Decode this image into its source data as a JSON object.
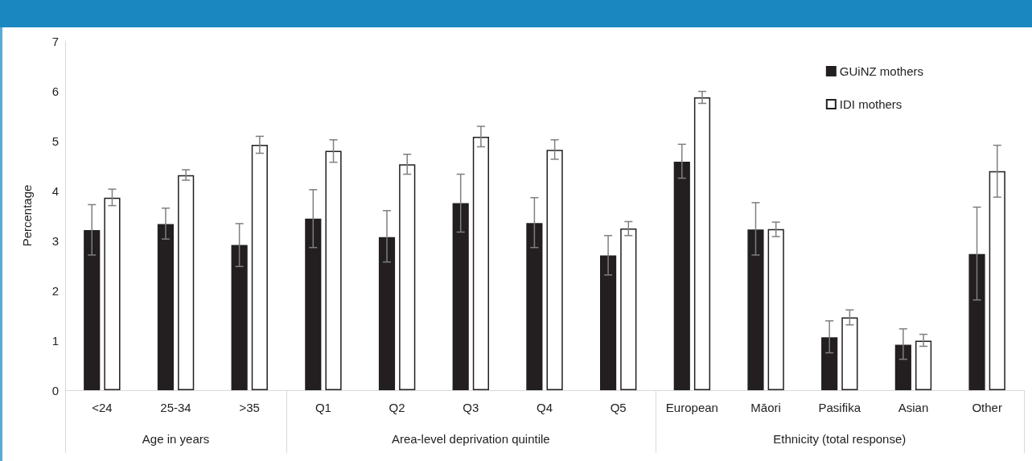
{
  "chart_data": {
    "type": "bar",
    "ylabel": "Percentage",
    "categories": [
      "<24",
      "25-34",
      ">35",
      "Q1",
      "Q2",
      "Q3",
      "Q4",
      "Q5",
      "European",
      "Māori",
      "Pasifika",
      "Asian",
      "Other"
    ],
    "series": [
      {
        "name": "GUiNZ mothers",
        "color": "#231f20",
        "values": [
          3.21,
          3.33,
          2.91,
          3.44,
          3.07,
          3.75,
          3.35,
          2.7,
          4.58,
          3.22,
          1.06,
          0.91,
          2.73
        ],
        "errors": [
          [
            2.71,
            3.72
          ],
          [
            3.03,
            3.65
          ],
          [
            2.48,
            3.34
          ],
          [
            2.86,
            4.02
          ],
          [
            2.57,
            3.6
          ],
          [
            3.17,
            4.33
          ],
          [
            2.86,
            3.86
          ],
          [
            2.31,
            3.1
          ],
          [
            4.25,
            4.93
          ],
          [
            2.71,
            3.76
          ],
          [
            0.75,
            1.39
          ],
          [
            0.62,
            1.23
          ],
          [
            1.81,
            3.67
          ]
        ]
      },
      {
        "name": "IDI mothers",
        "color": "#ffffff",
        "values": [
          3.86,
          4.31,
          4.92,
          4.8,
          4.53,
          5.08,
          4.82,
          3.24,
          5.87,
          3.23,
          1.46,
          0.99,
          4.39
        ],
        "errors": [
          [
            3.7,
            4.03
          ],
          [
            4.21,
            4.42
          ],
          [
            4.75,
            5.09
          ],
          [
            4.57,
            5.02
          ],
          [
            4.33,
            4.73
          ],
          [
            4.88,
            5.29
          ],
          [
            4.63,
            5.02
          ],
          [
            3.1,
            3.38
          ],
          [
            5.75,
            5.99
          ],
          [
            3.08,
            3.37
          ],
          [
            1.31,
            1.61
          ],
          [
            0.88,
            1.12
          ],
          [
            3.87,
            4.91
          ]
        ]
      }
    ],
    "ylim": [
      0,
      7
    ],
    "yticks": [
      0,
      1,
      2,
      3,
      4,
      5,
      6,
      7
    ],
    "grid": false,
    "legend": "top right",
    "annotations": [
      "Age in years",
      "Area-level deprivation quintile",
      "Ethnicity (total response)"
    ]
  }
}
